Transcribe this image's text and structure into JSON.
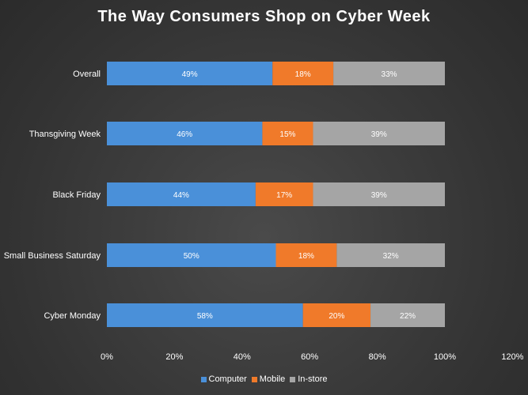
{
  "chart_data": {
    "type": "bar",
    "orientation": "horizontal",
    "stacked": true,
    "title": "The Way Consumers Shop on Cyber Week",
    "categories": [
      "Overall",
      "Thansgiving Week",
      "Black Friday",
      "Small Business Saturday",
      "Cyber Monday"
    ],
    "series": [
      {
        "name": "Computer",
        "color": "#4a90d9",
        "values": [
          49,
          46,
          44,
          50,
          58
        ],
        "labels": [
          "49%",
          "46%",
          "44%",
          "50%",
          "58%"
        ]
      },
      {
        "name": "Mobile",
        "color": "#f07a2a",
        "values": [
          18,
          15,
          17,
          18,
          20
        ],
        "labels": [
          "18%",
          "15%",
          "17%",
          "18%",
          "20%"
        ]
      },
      {
        "name": "In-store",
        "color": "#a5a5a5",
        "values": [
          33,
          39,
          39,
          32,
          22
        ],
        "labels": [
          "33%",
          "39%",
          "39%",
          "32%",
          "22%"
        ]
      }
    ],
    "xlim": [
      0,
      120
    ],
    "xticks": [
      "0%",
      "20%",
      "40%",
      "60%",
      "80%",
      "100%",
      "120%"
    ],
    "grid": false,
    "legend_position": "bottom"
  }
}
